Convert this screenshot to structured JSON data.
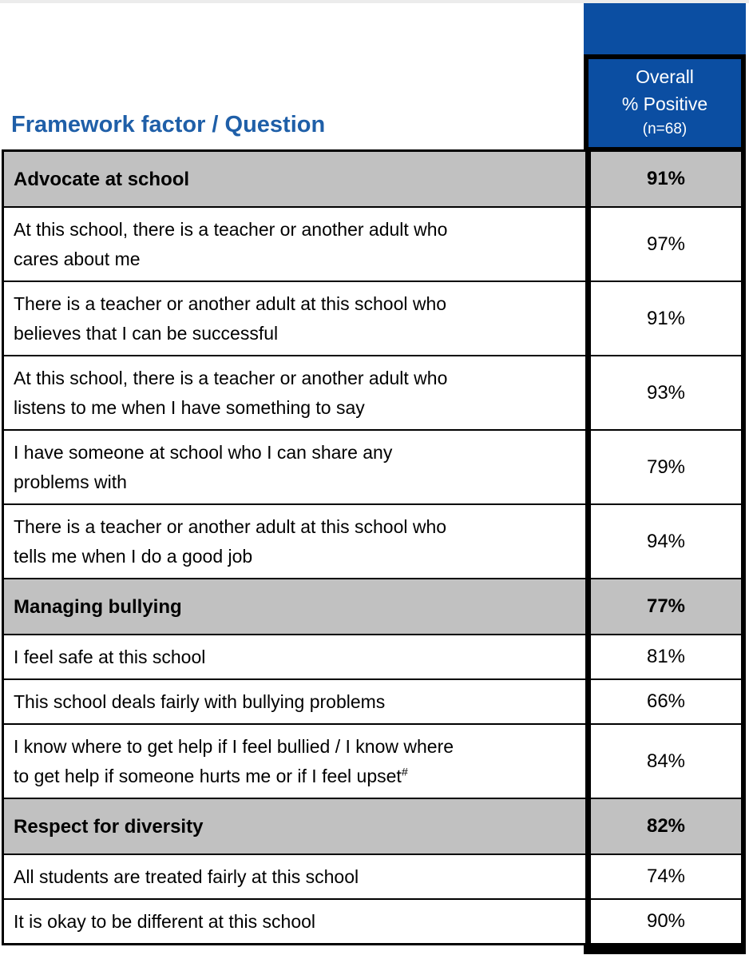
{
  "header": {
    "title": "Framework factor / Question",
    "column": {
      "line1": "Overall",
      "line2": "% Positive",
      "line3": "(n=68)"
    }
  },
  "colors": {
    "accent_blue": "#0b4ea2",
    "title_blue": "#1f5fa8",
    "factor_gray": "#c1c1c1",
    "border_black": "#000000",
    "top_strip": "#ececec",
    "header_text": "#ffffff",
    "body_text": "#000000"
  },
  "table": {
    "rows": [
      {
        "kind": "factor",
        "label": "Advocate at school",
        "value": "91%"
      },
      {
        "kind": "question",
        "label": "At this school, there is a teacher or another adult who\ncares about me",
        "value": "97%"
      },
      {
        "kind": "question",
        "label": "There is a teacher or another adult at this school who\nbelieves that I can be successful",
        "value": "91%"
      },
      {
        "kind": "question",
        "label": "At this school, there is a teacher or another adult who\nlistens to me when I have something to say",
        "value": "93%"
      },
      {
        "kind": "question",
        "label": "I have someone at school who I can share any\nproblems with",
        "value": "79%"
      },
      {
        "kind": "question",
        "label": "There is a teacher or another adult at this school who\ntells me when I do a good job",
        "value": "94%"
      },
      {
        "kind": "factor",
        "label": "Managing bullying",
        "value": "77%"
      },
      {
        "kind": "question",
        "label": "I feel safe at this school",
        "value": "81%"
      },
      {
        "kind": "question",
        "label": "This school deals fairly with bullying problems",
        "value": "66%"
      },
      {
        "kind": "question",
        "label": "I know where to get help if I feel bullied / I know where\nto get help if someone hurts me or if I feel upset",
        "superscript": "#",
        "value": "84%"
      },
      {
        "kind": "factor",
        "label": "Respect for diversity",
        "value": "82%"
      },
      {
        "kind": "question",
        "label": "All students are treated fairly at this school",
        "value": "74%"
      },
      {
        "kind": "question",
        "label": "It is okay to be different at this school",
        "value": "90%"
      }
    ]
  },
  "chart_data": {
    "type": "table",
    "title": "Framework factor / Question",
    "columns": [
      "Framework factor / Question",
      "Overall % Positive (n=68)"
    ],
    "n": 68,
    "sections": [
      {
        "factor": "Advocate at school",
        "percent_positive": 91,
        "questions": [
          {
            "label": "At this school, there is a teacher or another adult who cares about me",
            "percent_positive": 97
          },
          {
            "label": "There is a teacher or another adult at this school who believes that I can be successful",
            "percent_positive": 91
          },
          {
            "label": "At this school, there is a teacher or another adult who listens to me when I have something to say",
            "percent_positive": 93
          },
          {
            "label": "I have someone at school who I can share any problems with",
            "percent_positive": 79
          },
          {
            "label": "There is a teacher or another adult at this school who tells me when I do a good job",
            "percent_positive": 94
          }
        ]
      },
      {
        "factor": "Managing bullying",
        "percent_positive": 77,
        "questions": [
          {
            "label": "I feel safe at this school",
            "percent_positive": 81
          },
          {
            "label": "This school deals fairly with bullying problems",
            "percent_positive": 66
          },
          {
            "label": "I know where to get help if I feel bullied / I know where to get help if someone hurts me or if I feel upset#",
            "percent_positive": 84
          }
        ]
      },
      {
        "factor": "Respect for diversity",
        "percent_positive": 82,
        "questions": [
          {
            "label": "All students are treated fairly at this school",
            "percent_positive": 74
          },
          {
            "label": "It is okay to be different at this school",
            "percent_positive": 90
          }
        ]
      }
    ]
  }
}
